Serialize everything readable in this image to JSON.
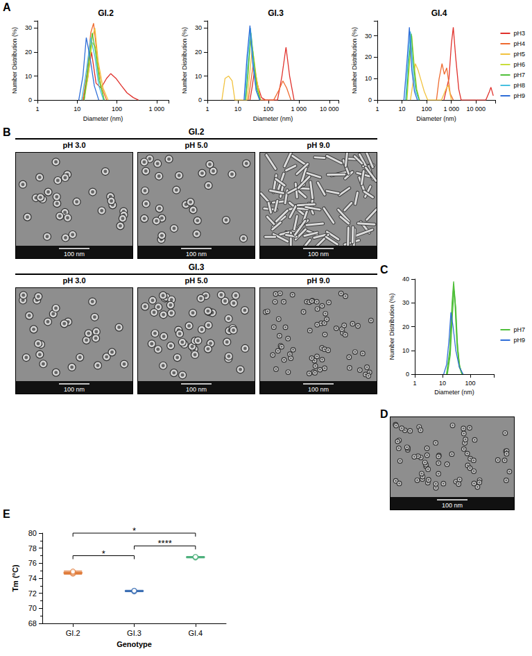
{
  "figure_labels": [
    "A",
    "B",
    "C",
    "D",
    "E"
  ],
  "chart_data": [
    {
      "type": "line",
      "title": "GI.2",
      "x_label": "Diameter (nm)",
      "y_label": "Number Distribution (%)",
      "log": "x",
      "xlim": [
        1,
        2000
      ],
      "xticks": [
        1,
        10,
        100,
        {
          "value": 1000,
          "label": "1 000"
        }
      ],
      "ylim": [
        0,
        33
      ],
      "yticks": [
        0,
        10,
        20,
        30
      ],
      "series": [
        {
          "name": "pH3",
          "color": "#e0302b",
          "x": [
            14,
            18,
            23,
            30,
            40,
            55,
            70,
            95,
            130,
            180,
            260,
            350
          ],
          "values": [
            0,
            8,
            20,
            7,
            5,
            9,
            11,
            9,
            6,
            3,
            1,
            0
          ]
        },
        {
          "name": "pH4",
          "color": "#ef6a2e",
          "x": [
            14,
            18,
            22,
            26,
            32,
            40,
            55
          ],
          "values": [
            0,
            12,
            28,
            32,
            18,
            6,
            0
          ]
        },
        {
          "name": "pH5",
          "color": "#f2c23d",
          "x": [
            15,
            19,
            24,
            28,
            34,
            45,
            60
          ],
          "values": [
            0,
            10,
            26,
            30,
            16,
            5,
            0
          ]
        },
        {
          "name": "pH6",
          "color": "#c9dd3a",
          "x": [
            15,
            19,
            24,
            29,
            36,
            48
          ],
          "values": [
            0,
            12,
            24,
            22,
            10,
            0
          ]
        },
        {
          "name": "pH7",
          "color": "#4fbf3a",
          "x": [
            15,
            19,
            24,
            29,
            36,
            48
          ],
          "values": [
            0,
            14,
            28,
            20,
            8,
            0
          ]
        },
        {
          "name": "pH8",
          "color": "#47c0e0",
          "x": [
            13,
            17,
            22,
            28,
            35,
            46
          ],
          "values": [
            0,
            12,
            26,
            18,
            6,
            0
          ]
        },
        {
          "name": "pH9",
          "color": "#2e6dd8",
          "x": [
            11,
            14,
            17,
            21,
            27,
            35
          ],
          "values": [
            0,
            10,
            26,
            18,
            6,
            0
          ]
        }
      ]
    },
    {
      "type": "line",
      "title": "GI.3",
      "x_label": "Diameter (nm)",
      "y_label": "Number Distribution (%)",
      "log": "x",
      "xlim": [
        1,
        20000
      ],
      "xticks": [
        1,
        10,
        100,
        {
          "value": 1000,
          "label": "1 000"
        },
        {
          "value": 10000,
          "label": "10 000"
        }
      ],
      "ylim": [
        0,
        33
      ],
      "yticks": [
        0,
        10,
        20,
        30
      ],
      "series": [
        {
          "name": "pH3",
          "color": "#e0302b",
          "x": [
            25,
            30,
            35,
            45,
            60,
            80,
            200,
            280,
            380,
            500,
            700
          ],
          "values": [
            0,
            6,
            12,
            6,
            1,
            0,
            0,
            10,
            22,
            10,
            0
          ]
        },
        {
          "name": "pH4",
          "color": "#ef6a2e",
          "x": [
            22,
            27,
            33,
            42,
            55,
            150,
            220,
            300,
            400,
            550
          ],
          "values": [
            0,
            8,
            16,
            8,
            0,
            0,
            4,
            8,
            5,
            0
          ]
        },
        {
          "name": "pH5",
          "color": "#f2c23d",
          "x": [
            3,
            3.8,
            5,
            6.5,
            8,
            20,
            25,
            30,
            40,
            55
          ],
          "values": [
            0,
            9,
            10,
            8,
            0,
            0,
            12,
            22,
            10,
            0
          ]
        },
        {
          "name": "pH6",
          "color": "#c9dd3a",
          "x": [
            18,
            22,
            27,
            33,
            42,
            55
          ],
          "values": [
            0,
            14,
            26,
            18,
            6,
            0
          ]
        },
        {
          "name": "pH7",
          "color": "#4fbf3a",
          "x": [
            18,
            22,
            27,
            33,
            42,
            55
          ],
          "values": [
            0,
            12,
            28,
            17,
            5,
            0
          ]
        },
        {
          "name": "pH8",
          "color": "#47c0e0",
          "x": [
            17,
            21,
            26,
            32,
            40,
            52
          ],
          "values": [
            0,
            16,
            30,
            16,
            4,
            0
          ]
        },
        {
          "name": "pH9",
          "color": "#2e6dd8",
          "x": [
            16,
            20,
            25,
            31,
            40,
            52
          ],
          "values": [
            0,
            18,
            31,
            15,
            4,
            0
          ]
        }
      ]
    },
    {
      "type": "line",
      "title": "GI.4",
      "x_label": "Diameter (nm)",
      "y_label": "Number Distribution (%)",
      "log": "x",
      "xlim": [
        1,
        60000
      ],
      "xticks": [
        1,
        10,
        100,
        {
          "value": 1000,
          "label": "1 000"
        },
        {
          "value": 10000,
          "label": "10 000"
        }
      ],
      "ylim": [
        0,
        37
      ],
      "yticks": [
        0,
        10,
        20,
        30
      ],
      "legend": "right",
      "series": [
        {
          "name": "pH3",
          "color": "#e0302b",
          "x": [
            500,
            800,
            1000,
            1200,
            1500,
            2000,
            2500,
            25000,
            35000,
            40000,
            50000
          ],
          "values": [
            0,
            10,
            26,
            34,
            20,
            5,
            0,
            0,
            4,
            6,
            2
          ]
        },
        {
          "name": "pH4",
          "color": "#ef6a2e",
          "x": [
            250,
            320,
            420,
            520,
            650,
            750,
            900,
            1200
          ],
          "values": [
            0,
            10,
            17,
            12,
            15,
            10,
            3,
            0
          ]
        },
        {
          "name": "pH5",
          "color": "#f2c23d",
          "x": [
            22,
            28,
            35,
            45,
            60,
            80,
            110,
            400,
            600,
            750,
            1000
          ],
          "values": [
            0,
            8,
            17,
            14,
            9,
            4,
            0,
            0,
            5,
            7,
            0
          ]
        },
        {
          "name": "pH6",
          "color": "#c9dd3a",
          "x": [
            16,
            20,
            25,
            31,
            40,
            52
          ],
          "values": [
            0,
            16,
            30,
            17,
            5,
            0
          ]
        },
        {
          "name": "pH7",
          "color": "#4fbf3a",
          "x": [
            15,
            19,
            24,
            30,
            38,
            50
          ],
          "values": [
            0,
            18,
            31,
            16,
            5,
            0
          ]
        },
        {
          "name": "pH8",
          "color": "#47c0e0",
          "x": [
            14,
            18,
            22,
            28,
            36,
            48
          ],
          "values": [
            0,
            20,
            32,
            14,
            4,
            0
          ]
        },
        {
          "name": "pH9",
          "color": "#2e6dd8",
          "x": [
            12,
            16,
            20,
            25,
            32,
            42
          ],
          "values": [
            0,
            18,
            34,
            14,
            4,
            0
          ]
        }
      ]
    },
    {
      "type": "line",
      "x_label": "Diameter (nm)",
      "y_label": "Number Distribution (%)",
      "log": "x",
      "xlim": [
        1,
        700
      ],
      "xticks": [
        1,
        10,
        100
      ],
      "ylim": [
        0,
        40
      ],
      "yticks": [
        0,
        10,
        20,
        30,
        40
      ],
      "legend": "right",
      "series": [
        {
          "name": "pH7",
          "color": "#4fbf3a",
          "x": [
            14,
            18,
            22,
            25,
            28,
            33,
            40,
            50
          ],
          "values": [
            0,
            10,
            30,
            39,
            32,
            15,
            4,
            0
          ]
        },
        {
          "name": "pH7",
          "color": "#4fbf3a",
          "x": [
            14,
            18,
            22,
            25,
            28,
            33,
            40,
            50
          ],
          "values": [
            0,
            8,
            27,
            37,
            30,
            12,
            3,
            0
          ]
        },
        {
          "name": "pH7",
          "color": "#4fbf3a",
          "x": [
            15,
            19,
            23,
            26,
            30,
            35,
            42,
            52
          ],
          "values": [
            0,
            8,
            26,
            35,
            28,
            11,
            3,
            0
          ]
        },
        {
          "name": "pH9",
          "color": "#2e6dd8",
          "x": [
            11,
            14,
            17,
            20,
            24,
            30,
            40,
            55
          ],
          "values": [
            0,
            4,
            14,
            26,
            20,
            10,
            3,
            0
          ]
        }
      ]
    },
    {
      "type": "box",
      "x_label": "Genotype",
      "y_label": "Tm (°C)",
      "categories": [
        "GI.2",
        "GI.3",
        "GI.4"
      ],
      "colors": [
        "#e07b39",
        "#3c6fb4",
        "#4db07c"
      ],
      "ylim": [
        68,
        80
      ],
      "yticks": [
        68,
        70,
        72,
        74,
        76,
        78,
        80
      ],
      "box": [
        [
          74.55,
          74.65,
          74.75,
          74.8,
          74.95
        ],
        [
          72.2,
          72.25,
          72.3,
          72.35,
          72.4
        ],
        [
          76.7,
          76.75,
          76.8,
          76.85,
          76.9
        ]
      ],
      "values": [
        [
          74.6,
          74.75,
          74.9
        ],
        [
          72.25,
          72.3,
          72.35
        ],
        [
          76.75,
          76.8,
          76.85
        ]
      ],
      "annotations": [
        {
          "from": "GI.2",
          "to": "GI.3",
          "label": "*",
          "y": 77
        },
        {
          "from": "GI.3",
          "to": "GI.4",
          "label": "****",
          "y": 78.3
        },
        {
          "from": "GI.2",
          "to": "GI.4",
          "label": "*",
          "y": 80
        }
      ]
    }
  ],
  "images": {
    "scale_bar": "100 nm",
    "rows": [
      {
        "title": "GI.2",
        "panels": [
          "pH 3.0",
          "pH 5.0",
          "pH 9.0"
        ]
      },
      {
        "title": "GI.3",
        "panels": [
          "pH 3.0",
          "pH 5.0",
          "pH 9.0"
        ]
      }
    ]
  }
}
